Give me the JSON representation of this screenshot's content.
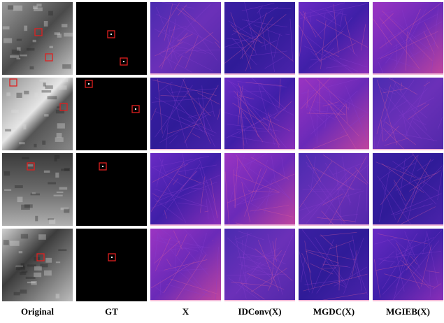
{
  "figure": {
    "columns": [
      "Original",
      "GT",
      "X",
      "IDConv(X)",
      "MGDC(X)",
      "MGIEB(X)"
    ]
  }
}
